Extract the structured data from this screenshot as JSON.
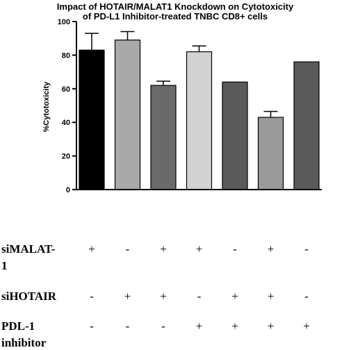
{
  "chart_data": {
    "type": "bar",
    "title": [
      "Impact of HOTAIR/MALAT1 Knockdown on Cytotoxicity",
      "of PD-L1 Inhibitor-treated TNBC CD8+ cells"
    ],
    "ylabel": "%Cytotoxicity",
    "ylim": [
      0,
      100
    ],
    "yticks": [
      0,
      20,
      40,
      60,
      80,
      100
    ],
    "values": [
      83,
      89,
      62,
      82,
      64,
      43,
      76
    ],
    "errors": [
      10,
      5,
      2.5,
      3.5,
      null,
      3.5,
      null
    ],
    "colors": [
      "#000000",
      "#a9a9a9",
      "#6a6a6a",
      "#d2d2d2",
      "#5a5a5a",
      "#9a9a9a",
      "#5a5a5a"
    ]
  },
  "table": {
    "rows": [
      {
        "label_lines": [
          "siMALAT-",
          "1"
        ],
        "signs": [
          "+",
          "-",
          "+",
          "+",
          "-",
          "+",
          "-"
        ]
      },
      {
        "label_lines": [
          "siHOTAIR"
        ],
        "signs": [
          "-",
          "+",
          "+",
          "-",
          "+",
          "+",
          "-"
        ]
      },
      {
        "label_lines": [
          "PDL-1",
          "inhibitor"
        ],
        "signs": [
          "-",
          "-",
          "-",
          "+",
          "+",
          "+",
          "+"
        ]
      }
    ]
  }
}
